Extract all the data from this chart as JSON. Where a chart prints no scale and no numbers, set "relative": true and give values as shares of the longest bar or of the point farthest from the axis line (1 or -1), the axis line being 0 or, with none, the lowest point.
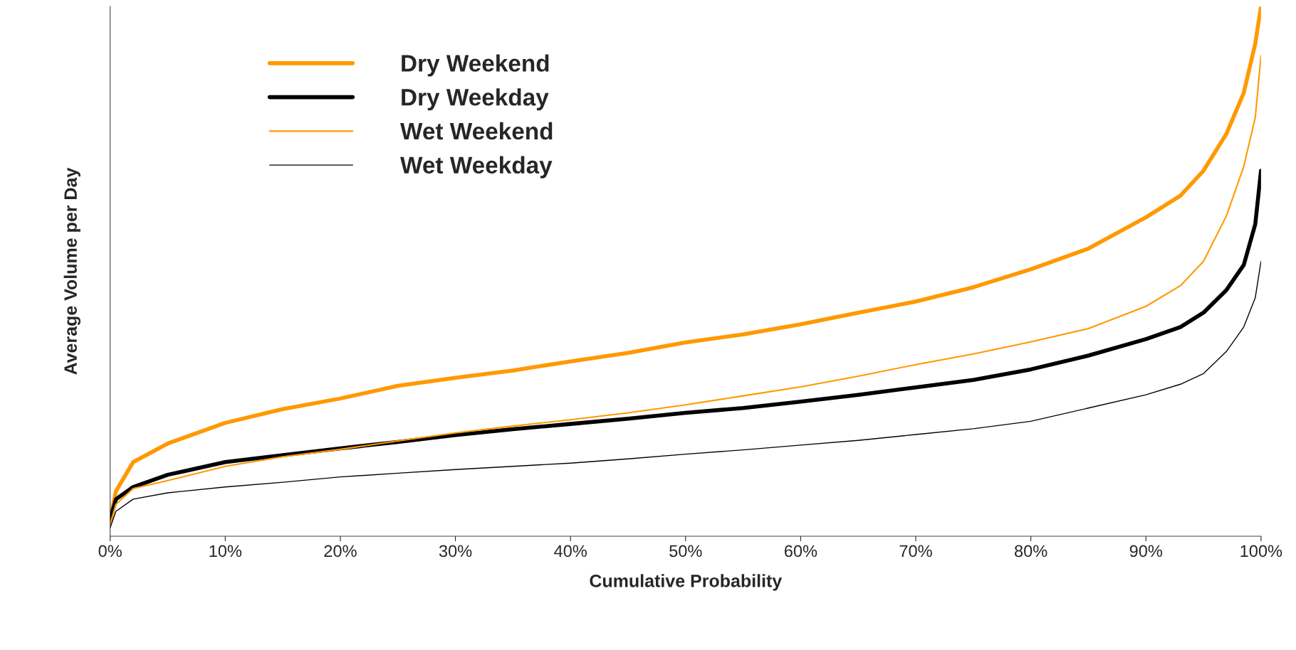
{
  "chart_data": {
    "type": "line",
    "relative": true,
    "xlabel": "Cumulative Probability",
    "ylabel": "Average Volume per Day",
    "xlim": [
      0,
      100
    ],
    "xticks": [
      {
        "value": 0,
        "label": "0%"
      },
      {
        "value": 10,
        "label": "10%"
      },
      {
        "value": 20,
        "label": "20%"
      },
      {
        "value": 30,
        "label": "30%"
      },
      {
        "value": 40,
        "label": "40%"
      },
      {
        "value": 50,
        "label": "50%"
      },
      {
        "value": 60,
        "label": "60%"
      },
      {
        "value": 70,
        "label": "70%"
      },
      {
        "value": 80,
        "label": "80%"
      },
      {
        "value": 90,
        "label": "90%"
      },
      {
        "value": 100,
        "label": "100%"
      }
    ],
    "x": [
      0,
      0.5,
      2,
      5,
      10,
      15,
      20,
      25,
      30,
      35,
      40,
      45,
      50,
      55,
      60,
      65,
      70,
      75,
      80,
      85,
      90,
      93,
      95,
      97,
      98.5,
      99.5,
      100
    ],
    "legend": "top left",
    "grid": false,
    "marker": "none",
    "line_style": "solid",
    "series": [
      {
        "name": "Dry Weekend",
        "color": "#ff9900",
        "values": [
          0.03,
          0.085,
          0.14,
          0.175,
          0.214,
          0.24,
          0.26,
          0.284,
          0.299,
          0.313,
          0.33,
          0.346,
          0.366,
          0.381,
          0.4,
          0.422,
          0.443,
          0.47,
          0.504,
          0.543,
          0.602,
          0.643,
          0.69,
          0.76,
          0.837,
          0.93,
          1.0
        ]
      },
      {
        "name": "Dry Weekday",
        "color": "#000000",
        "values": [
          0.031,
          0.07,
          0.093,
          0.116,
          0.14,
          0.153,
          0.166,
          0.178,
          0.191,
          0.202,
          0.212,
          0.222,
          0.233,
          0.242,
          0.254,
          0.267,
          0.281,
          0.295,
          0.315,
          0.341,
          0.372,
          0.395,
          0.422,
          0.465,
          0.512,
          0.589,
          0.69
        ]
      },
      {
        "name": "Wet Weekend",
        "color": "#ff9900",
        "values": [
          0.023,
          0.06,
          0.09,
          0.105,
          0.132,
          0.15,
          0.164,
          0.18,
          0.195,
          0.208,
          0.22,
          0.233,
          0.248,
          0.265,
          0.282,
          0.302,
          0.324,
          0.344,
          0.367,
          0.392,
          0.434,
          0.473,
          0.519,
          0.605,
          0.698,
          0.79,
          0.907
        ]
      },
      {
        "name": "Wet Weekday",
        "color": "#000000",
        "values": [
          0.016,
          0.047,
          0.07,
          0.082,
          0.093,
          0.102,
          0.112,
          0.119,
          0.126,
          0.132,
          0.138,
          0.146,
          0.155,
          0.163,
          0.172,
          0.181,
          0.192,
          0.203,
          0.217,
          0.242,
          0.267,
          0.287,
          0.307,
          0.349,
          0.395,
          0.45,
          0.519
        ]
      }
    ]
  }
}
